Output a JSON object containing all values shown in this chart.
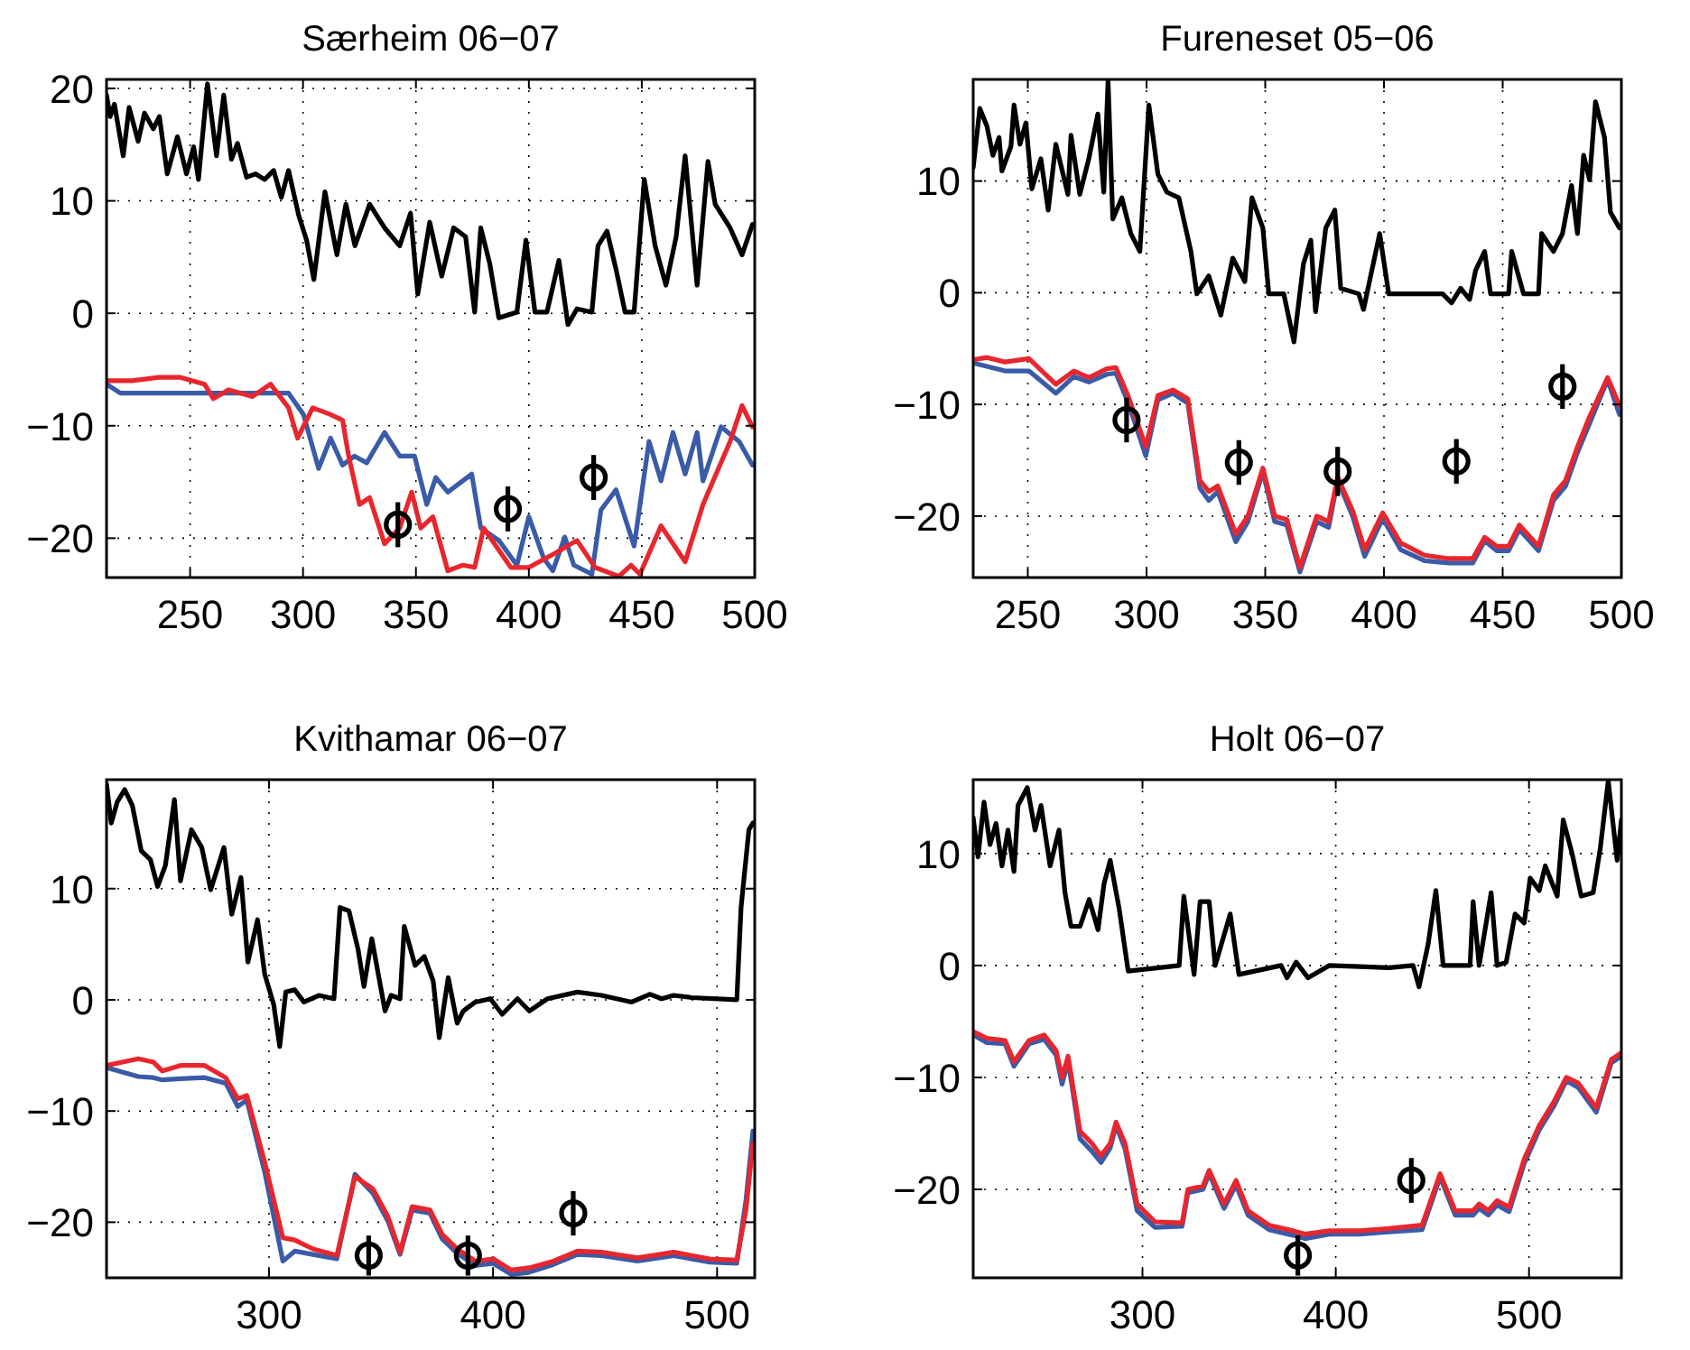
{
  "chart_data": [
    {
      "type": "line",
      "title": "Særheim 06−07",
      "xlim": [
        213,
        500
      ],
      "ylim": [
        -23.5,
        20.8
      ],
      "xticks": [
        250,
        300,
        350,
        400,
        450,
        500
      ],
      "yticks": [
        -20,
        -10,
        0,
        10,
        20
      ],
      "grid": true,
      "series": [
        {
          "color": "#000000",
          "x": [
            213,
            214.6,
            216.5,
            220.4,
            223,
            227,
            229.8,
            233.7,
            236.4,
            239.9,
            244.4,
            248.4,
            251.6,
            253.7,
            257.7,
            261.7,
            264.9,
            268.3,
            271,
            275,
            279,
            283,
            287,
            290.4,
            293.6,
            298.1,
            301.6,
            304.8,
            309.7,
            315,
            319,
            323,
            329.5,
            336.1,
            342.8,
            347.6,
            350.8,
            356.1,
            361.4,
            366.7,
            372,
            376,
            378.7,
            382.7,
            386.7,
            394.7,
            398.7,
            402.7,
            408,
            413.3,
            417.3,
            421.3,
            427.9,
            430.6,
            434.6,
            438.6,
            442.6,
            446.6,
            451.1,
            455.9,
            460.7,
            465.2,
            469.2,
            474.5,
            479.3,
            482.5,
            489.1,
            494.4,
            499
          ],
          "values": [
            19.4,
            17.5,
            18.6,
            14.0,
            18.3,
            15.3,
            17.8,
            16.4,
            17.5,
            12.4,
            15.7,
            12.4,
            14.8,
            11.9,
            20.4,
            14.0,
            19.4,
            13.7,
            15.1,
            12.1,
            12.4,
            11.9,
            12.7,
            10.3,
            12.7,
            8.7,
            6.5,
            3.0,
            10.8,
            5.2,
            9.7,
            6.0,
            9.7,
            7.6,
            6.0,
            8.9,
            1.7,
            8.1,
            3.3,
            7.6,
            6.8,
            0.1,
            7.6,
            4.4,
            -0.4,
            0.1,
            6.5,
            0.1,
            0.1,
            4.7,
            -1.0,
            0.4,
            0.1,
            6.0,
            7.3,
            3.9,
            0.1,
            0.1,
            11.9,
            6.0,
            2.5,
            6.8,
            14.0,
            2.5,
            13.5,
            9.7,
            7.6,
            5.2,
            7.9
          ]
        },
        {
          "color": "#3a5ba8",
          "x": [
            213,
            219.1,
            232.4,
            293.6,
            300.2,
            306.9,
            312.2,
            317.5,
            322.8,
            328.2,
            336.1,
            342.8,
            349.4,
            354.8,
            358.8,
            364.1,
            374.7,
            378.7,
            386.7,
            394.7,
            400,
            406.6,
            410.6,
            415.9,
            419.9,
            427.9,
            431.9,
            438.6,
            446.6,
            453.2,
            458.5,
            463.8,
            469.2,
            474.5,
            477.1,
            485.1,
            493.1,
            499
          ],
          "values": [
            -6.3,
            -7.1,
            -7.1,
            -7.1,
            -9.0,
            -13.8,
            -11.1,
            -13.5,
            -12.7,
            -13.3,
            -10.6,
            -12.7,
            -12.7,
            -17.0,
            -14.6,
            -15.9,
            -14.3,
            -19.1,
            -20.2,
            -22.4,
            -18.1,
            -21.8,
            -22.9,
            -19.9,
            -22.4,
            -23.2,
            -17.5,
            -15.7,
            -20.7,
            -11.4,
            -14.9,
            -10.6,
            -14.3,
            -10.6,
            -14.9,
            -10.1,
            -11.4,
            -13.5
          ]
        },
        {
          "color": "#e8262e",
          "x": [
            213,
            224.4,
            236.4,
            245.7,
            256.4,
            260.3,
            267,
            277.6,
            285.6,
            293.6,
            297.6,
            304.3,
            312.2,
            317.5,
            320.2,
            325,
            329.5,
            336.1,
            342.8,
            348.1,
            352.1,
            357.5,
            364.1,
            370.8,
            376,
            380,
            392,
            400,
            412,
            421.3,
            429.3,
            439.9,
            445.2,
            449.2,
            458.5,
            469.2,
            477.1,
            489.1,
            494.4,
            499
          ],
          "values": [
            -6.0,
            -6.0,
            -5.7,
            -5.7,
            -6.3,
            -7.6,
            -6.8,
            -7.4,
            -6.3,
            -8.4,
            -11.1,
            -8.4,
            -9.0,
            -9.5,
            -12.7,
            -17.0,
            -16.4,
            -20.5,
            -19.1,
            -15.9,
            -19.1,
            -18.1,
            -22.9,
            -22.4,
            -22.6,
            -19.1,
            -22.6,
            -22.6,
            -21.3,
            -20.2,
            -22.6,
            -23.4,
            -22.4,
            -23.2,
            -18.9,
            -22.1,
            -17.0,
            -11.4,
            -8.2,
            -10.1
          ]
        },
        {
          "type": "scatter",
          "color": "#000000",
          "marker": "circle",
          "x": [
            342,
            390.7,
            428.7
          ],
          "values": [
            -18.8,
            -17.4,
            -14.6
          ],
          "errors": [
            2,
            2,
            2
          ]
        }
      ]
    },
    {
      "type": "line",
      "title": "Fureneset 05−06",
      "xlim": [
        227,
        500
      ],
      "ylim": [
        -25.5,
        19.1
      ],
      "xticks": [
        250,
        300,
        350,
        400,
        450,
        500
      ],
      "yticks": [
        -20,
        -10,
        0,
        10
      ],
      "grid": true,
      "series": [
        {
          "color": "#000000",
          "x": [
            227,
            229.8,
            232.8,
            235.3,
            237.9,
            239.1,
            242.9,
            244.2,
            246.7,
            249.2,
            251.7,
            255.5,
            258.6,
            261.8,
            266.9,
            268.2,
            271.9,
            275.7,
            279.5,
            282,
            283.8,
            285.8,
            289.6,
            293.4,
            297.2,
            301,
            304.8,
            308.6,
            313.6,
            318.7,
            321.2,
            326.2,
            331.3,
            336.3,
            341.4,
            344.4,
            349,
            351.5,
            357.8,
            362.1,
            366.1,
            369.2,
            371.2,
            375.5,
            379.3,
            381.8,
            389.4,
            391.4,
            394.4,
            398.2,
            402,
            424.7,
            428.5,
            432.3,
            436.1,
            438.6,
            442.4,
            444.9,
            452.5,
            453.8,
            458.8,
            465.1,
            466.4,
            471.4,
            475.2,
            479,
            481.5,
            484.1,
            486.6,
            489.1,
            492.9,
            495.4,
            499.2
          ],
          "values": [
            11.2,
            16.5,
            14.9,
            12.3,
            13.9,
            10.9,
            13.1,
            16.8,
            13.3,
            15.2,
            9.3,
            12.0,
            7.4,
            13.3,
            8.8,
            14.1,
            8.8,
            12.0,
            16.0,
            9.0,
            19.0,
            6.6,
            8.5,
            5.3,
            3.7,
            16.8,
            10.6,
            9.0,
            8.5,
            3.7,
            -0.1,
            1.5,
            -2.0,
            3.1,
            1.0,
            8.5,
            5.8,
            -0.1,
            -0.1,
            -4.4,
            2.6,
            4.7,
            -1.7,
            5.8,
            7.4,
            0.4,
            -0.1,
            -1.5,
            1.5,
            5.3,
            -0.1,
            -0.1,
            -0.9,
            0.4,
            -0.6,
            2.0,
            3.7,
            -0.1,
            -0.1,
            3.7,
            -0.1,
            -0.1,
            5.3,
            3.7,
            5.3,
            9.6,
            5.3,
            12.3,
            10.1,
            17.1,
            13.9,
            7.2,
            5.8
          ]
        },
        {
          "color": "#3a5ba8",
          "x": [
            227,
            232.8,
            240.4,
            250.5,
            261.8,
            269.4,
            275.7,
            283.3,
            287.1,
            292.2,
            299.7,
            304.8,
            311.1,
            317.4,
            322.5,
            326.2,
            330,
            337.6,
            342.7,
            349,
            354,
            359.1,
            364.6,
            371.7,
            376.7,
            380.5,
            386.8,
            391.9,
            399.5,
            407,
            417.1,
            427.3,
            437.4,
            442.4,
            447.5,
            452.5,
            457,
            465.1,
            471.4,
            476.5,
            481.5,
            486.6,
            494.2,
            499.2
          ],
          "values": [
            -6.3,
            -6.6,
            -7.0,
            -7.0,
            -9.0,
            -7.5,
            -8.0,
            -7.3,
            -7.2,
            -9.8,
            -14.6,
            -9.6,
            -9.0,
            -9.9,
            -17.5,
            -18.6,
            -17.8,
            -22.3,
            -20.5,
            -16.0,
            -20.5,
            -20.8,
            -25.0,
            -20.5,
            -21.0,
            -16.8,
            -20.0,
            -23.6,
            -20.2,
            -23.0,
            -24.0,
            -24.2,
            -24.2,
            -22.2,
            -23.1,
            -23.1,
            -21.2,
            -23.1,
            -18.6,
            -17.3,
            -14.3,
            -11.7,
            -7.8,
            -10.9
          ]
        },
        {
          "color": "#e8262e",
          "x": [
            227,
            232.8,
            240.4,
            250.5,
            261.8,
            269.4,
            275.7,
            283.3,
            287.1,
            292.2,
            299.7,
            304.8,
            311.1,
            317.4,
            322.5,
            326.2,
            330,
            337.6,
            342.7,
            349,
            354,
            359.1,
            364.6,
            371.7,
            376.7,
            380.5,
            386.8,
            391.9,
            399.5,
            407,
            417.1,
            427.3,
            437.4,
            442.4,
            447.5,
            452.5,
            457,
            465.1,
            471.4,
            476.5,
            481.5,
            486.6,
            494.2,
            499.2
          ],
          "values": [
            -6.0,
            -5.8,
            -6.2,
            -5.9,
            -8.2,
            -7.0,
            -7.6,
            -6.8,
            -6.7,
            -9.2,
            -13.8,
            -9.2,
            -8.7,
            -9.5,
            -16.8,
            -17.8,
            -17.3,
            -21.6,
            -20.0,
            -15.7,
            -20.0,
            -20.3,
            -24.6,
            -20.0,
            -20.5,
            -16.5,
            -19.5,
            -23.0,
            -19.7,
            -22.4,
            -23.5,
            -23.8,
            -23.8,
            -21.9,
            -22.7,
            -22.7,
            -20.8,
            -22.7,
            -18.1,
            -16.8,
            -13.8,
            -11.1,
            -7.6,
            -10.1
          ]
        },
        {
          "type": "scatter",
          "color": "#000000",
          "marker": "circle",
          "x": [
            291.6,
            338.9,
            380.5,
            430.5,
            475.2
          ],
          "values": [
            -11.4,
            -15.2,
            -16,
            -15.1,
            -8.4
          ],
          "errors": [
            2,
            2,
            2.2,
            2,
            2
          ]
        }
      ]
    },
    {
      "type": "line",
      "title": "Kvithamar 06−07",
      "xlim": [
        227.5,
        516.8
      ],
      "ylim": [
        -25,
        19.8
      ],
      "xticks": [
        300,
        400,
        500
      ],
      "yticks": [
        -20,
        -10,
        0,
        10
      ],
      "grid": true,
      "series": [
        {
          "color": "#000000",
          "x": [
            227.5,
            229.6,
            232.3,
            235.6,
            239,
            243,
            247.1,
            250.3,
            253.8,
            257.8,
            260.5,
            265.4,
            270,
            274,
            279.9,
            283.4,
            287.5,
            290.6,
            294.9,
            298.1,
            302.1,
            304.8,
            307.5,
            311.5,
            315.6,
            322.3,
            329,
            331.7,
            335.7,
            339.8,
            342.4,
            345.9,
            351.8,
            354.5,
            358.5,
            360.4,
            365.2,
            369.3,
            373.3,
            376,
            380,
            384,
            386.7,
            392.1,
            398.8,
            404.1,
            410.9,
            416.2,
            424.3,
            437.7,
            448.4,
            461.9,
            469.9,
            475.3,
            480.6,
            488.7,
            508.8,
            510.7,
            514.2,
            516
          ],
          "values": [
            19.4,
            15.9,
            17.8,
            18.9,
            17.5,
            13.4,
            12.6,
            10.2,
            12.1,
            18.0,
            10.7,
            15.3,
            13.7,
            9.9,
            13.7,
            7.7,
            11.0,
            3.4,
            7.2,
            2.3,
            -0.4,
            -4.2,
            0.7,
            0.9,
            -0.2,
            0.4,
            0.1,
            8.3,
            8.0,
            4.5,
            1.2,
            5.5,
            -1.0,
            0.4,
            0.1,
            6.6,
            3.1,
            3.9,
            1.7,
            -3.4,
            2.0,
            -2.1,
            -1.0,
            -0.2,
            0.1,
            -1.3,
            0.1,
            -1.0,
            0.1,
            0.7,
            0.4,
            -0.2,
            0.5,
            0.1,
            0.4,
            0.2,
            0,
            8.3,
            15.3,
            15.9
          ]
        },
        {
          "color": "#3a5ba8",
          "x": [
            227.5,
            241.7,
            248.4,
            252.4,
            260.5,
            271.3,
            280.7,
            286.1,
            290.1,
            298.1,
            306.2,
            311.5,
            319.6,
            330.3,
            338.4,
            346.4,
            353.1,
            358.5,
            363.9,
            371.9,
            377.3,
            384,
            392.1,
            400.1,
            408.2,
            416.2,
            427,
            437.7,
            448.4,
            464.5,
            480.6,
            496.8,
            508.8,
            512.9,
            516
          ],
          "values": [
            -6.1,
            -6.9,
            -7.0,
            -7.2,
            -7.1,
            -7.0,
            -7.5,
            -9.6,
            -9.0,
            -15.5,
            -23.5,
            -22.6,
            -22.9,
            -23.3,
            -15.7,
            -17.4,
            -19.9,
            -22.9,
            -18.9,
            -19.2,
            -21.5,
            -22.8,
            -23.9,
            -23.7,
            -24.7,
            -24.5,
            -23.8,
            -22.9,
            -23.0,
            -23.5,
            -23.0,
            -23.6,
            -23.7,
            -18.0,
            -11.8
          ]
        },
        {
          "color": "#e8262e",
          "x": [
            227.5,
            241.7,
            248.4,
            252.4,
            260.5,
            271.3,
            280.7,
            286.1,
            290.1,
            298.1,
            306.2,
            311.5,
            319.6,
            330.3,
            338.4,
            346.4,
            353.1,
            358.5,
            363.9,
            371.9,
            377.3,
            384,
            392.1,
            400.1,
            408.2,
            416.2,
            427,
            437.7,
            448.4,
            464.5,
            480.6,
            496.8,
            508.8,
            512.9,
            516
          ],
          "values": [
            -5.9,
            -5.3,
            -5.6,
            -6.4,
            -5.9,
            -5.9,
            -7.0,
            -8.9,
            -8.6,
            -14.6,
            -21.4,
            -21.6,
            -22.4,
            -23.0,
            -15.9,
            -17.0,
            -19.5,
            -22.7,
            -18.6,
            -18.9,
            -21.1,
            -22.4,
            -23.5,
            -23.3,
            -24.3,
            -24.1,
            -23.5,
            -22.6,
            -22.7,
            -23.2,
            -22.7,
            -23.3,
            -23.4,
            -18.9,
            -12.9
          ]
        },
        {
          "type": "scatter",
          "color": "#000000",
          "marker": "circle",
          "x": [
            344.5,
            388.8,
            435.8
          ],
          "values": [
            -23,
            -23,
            -19.2
          ],
          "errors": [
            1.8,
            1.8,
            2
          ]
        }
      ]
    },
    {
      "type": "line",
      "title": "Holt 06−07",
      "xlim": [
        212.4,
        547.8
      ],
      "ylim": [
        -27.9,
        16.6
      ],
      "xticks": [
        300,
        400,
        500
      ],
      "yticks": [
        -20,
        -10,
        0,
        10
      ],
      "grid": true,
      "series": [
        {
          "color": "#000000",
          "x": [
            212.4,
            214.9,
            218,
            221.1,
            224.2,
            227.3,
            230.4,
            233.5,
            235.6,
            240.4,
            244.4,
            247.5,
            252.2,
            256.8,
            259.9,
            263,
            267.7,
            272.4,
            277,
            280.1,
            283.3,
            287.9,
            292.6,
            303.4,
            319,
            321.4,
            326.7,
            329.8,
            334.5,
            337.6,
            345.4,
            349.9,
            371.7,
            374.8,
            379.5,
            385.7,
            396.6,
            427.6,
            440,
            443.1,
            447.8,
            451.8,
            455.6,
            469.5,
            471.1,
            474.2,
            480.4,
            483.5,
            488.2,
            492.8,
            497.5,
            500.6,
            505.3,
            508.4,
            514.6,
            517.7,
            522.3,
            527,
            533.2,
            536.9,
            541,
            545.6,
            547.8
          ],
          "values": [
            13.2,
            9.7,
            14.6,
            10.8,
            12.7,
            8.9,
            12.1,
            8.4,
            14.3,
            15.9,
            12.1,
            14.3,
            8.9,
            12.1,
            6.5,
            3.5,
            3.5,
            5.9,
            3.2,
            7.3,
            9.4,
            5.1,
            -0.5,
            -0.3,
            0,
            6.2,
            -0.8,
            5.7,
            5.7,
            0,
            4.6,
            -0.8,
            0,
            -1.1,
            0.3,
            -1.1,
            0,
            -0.2,
            0,
            -1.9,
            1.9,
            6.7,
            0,
            0,
            5.7,
            0,
            6.5,
            0,
            0.3,
            4.6,
            3.8,
            7.8,
            6.7,
            8.9,
            6.2,
            13.0,
            10.0,
            6.2,
            6.5,
            10.5,
            16.5,
            9.4,
            13.0
          ]
        },
        {
          "color": "#3a5ba8",
          "x": [
            212.4,
            219.5,
            228.9,
            233.5,
            241.3,
            249.1,
            255.3,
            258.4,
            261.5,
            267.7,
            273.9,
            278.5,
            283.3,
            286.3,
            291,
            297.2,
            306.5,
            320.5,
            323.5,
            331.3,
            334.5,
            342.2,
            348.4,
            354.6,
            365.5,
            377.9,
            384.1,
            396.6,
            412.1,
            427.6,
            444.7,
            454,
            461.8,
            471.1,
            474.2,
            478.9,
            483.5,
            489.7,
            497.5,
            505.3,
            513.1,
            519.3,
            525.5,
            534.8,
            542.6,
            547.8
          ],
          "values": [
            -6.2,
            -6.9,
            -7.0,
            -9.0,
            -7.0,
            -6.6,
            -8.0,
            -10.6,
            -8.5,
            -15.5,
            -16.6,
            -17.6,
            -16.3,
            -14.3,
            -16.4,
            -21.9,
            -23.4,
            -23.3,
            -20.3,
            -20.0,
            -18.6,
            -21.7,
            -19.6,
            -22.3,
            -23.6,
            -24.1,
            -24.4,
            -24.0,
            -24.0,
            -23.8,
            -23.6,
            -18.9,
            -22.3,
            -22.3,
            -21.7,
            -22.3,
            -21.4,
            -22.0,
            -17.7,
            -14.7,
            -12.5,
            -10.3,
            -10.9,
            -13.1,
            -8.7,
            -8.1
          ]
        },
        {
          "color": "#e8262e",
          "x": [
            212.4,
            219.5,
            228.9,
            233.5,
            241.3,
            249.1,
            255.3,
            258.4,
            261.5,
            267.7,
            273.9,
            278.5,
            283.3,
            286.3,
            291,
            297.2,
            306.5,
            320.5,
            323.5,
            331.3,
            334.5,
            342.2,
            348.4,
            354.6,
            365.5,
            377.9,
            384.1,
            396.6,
            412.1,
            427.6,
            444.7,
            454,
            461.8,
            471.1,
            474.2,
            478.9,
            483.5,
            489.7,
            497.5,
            505.3,
            513.1,
            519.3,
            525.5,
            534.8,
            542.6,
            547.8
          ],
          "values": [
            -5.9,
            -6.5,
            -6.7,
            -8.6,
            -6.7,
            -6.2,
            -7.6,
            -10.0,
            -8.1,
            -14.8,
            -15.9,
            -17.0,
            -15.9,
            -14.0,
            -15.9,
            -21.3,
            -22.9,
            -23.0,
            -20.0,
            -19.7,
            -18.3,
            -21.3,
            -19.2,
            -21.9,
            -23.2,
            -23.7,
            -24.0,
            -23.7,
            -23.7,
            -23.5,
            -23.2,
            -18.6,
            -21.9,
            -21.9,
            -21.3,
            -21.9,
            -21.0,
            -21.6,
            -17.3,
            -14.3,
            -12.1,
            -10.0,
            -10.5,
            -12.7,
            -8.4,
            -7.8
          ]
        },
        {
          "type": "scatter",
          "color": "#000000",
          "marker": "circle",
          "x": [
            380.4,
            439.1
          ],
          "values": [
            -25.9,
            -19.2
          ],
          "errors": [
            1.8,
            2
          ]
        }
      ]
    }
  ]
}
